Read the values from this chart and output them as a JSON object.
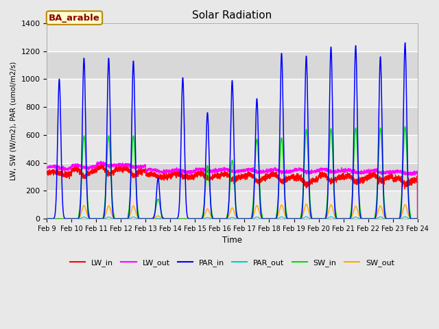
{
  "title": "Solar Radiation",
  "xlabel": "Time",
  "ylabel": "LW, SW (W/m2), PAR (umol/m2/s)",
  "annotation": "BA_arable",
  "ylim": [
    0,
    1400
  ],
  "tick_labels": [
    "Feb 9",
    "Feb 10",
    "Feb 11",
    "Feb 12",
    "Feb 13",
    "Feb 14",
    "Feb 15",
    "Feb 16",
    "Feb 17",
    "Feb 18",
    "Feb 19",
    "Feb 20",
    "Feb 21",
    "Feb 22",
    "Feb 23",
    "Feb 24"
  ],
  "colors": {
    "LW_in": "#ff0000",
    "LW_out": "#ff00ff",
    "PAR_in": "#0000ff",
    "PAR_out": "#00cccc",
    "SW_in": "#00dd00",
    "SW_out": "#ffaa00"
  },
  "bg_color": "#e8e8e8",
  "n_points": 4320,
  "par_in_peaks": [
    1000,
    1150,
    1150,
    1130,
    290,
    1010,
    760,
    990,
    860,
    1185,
    1165,
    1230,
    1240,
    1160,
    1260
  ],
  "sw_in_peaks": [
    0,
    595,
    595,
    595,
    140,
    0,
    380,
    420,
    570,
    580,
    640,
    645,
    650,
    650,
    660
  ],
  "sw_out_peaks": [
    0,
    95,
    92,
    92,
    20,
    0,
    70,
    78,
    95,
    98,
    105,
    100,
    90,
    92,
    100
  ],
  "par_out_peaks": [
    0,
    12,
    12,
    12,
    3,
    0,
    8,
    9,
    12,
    13,
    14,
    14,
    12,
    13,
    14
  ],
  "lw_in_base": [
    325,
    345,
    360,
    350,
    310,
    310,
    315,
    310,
    305,
    305,
    285,
    305,
    295,
    305,
    280
  ],
  "lw_in_dip": [
    0,
    40,
    40,
    40,
    10,
    0,
    25,
    30,
    35,
    35,
    35,
    35,
    30,
    30,
    30
  ],
  "lw_out_base": [
    365,
    375,
    390,
    380,
    345,
    340,
    350,
    348,
    345,
    345,
    345,
    348,
    340,
    338,
    332
  ],
  "lw_out_dip": [
    0,
    10,
    10,
    10,
    5,
    0,
    8,
    8,
    10,
    10,
    10,
    10,
    8,
    8,
    8
  ]
}
